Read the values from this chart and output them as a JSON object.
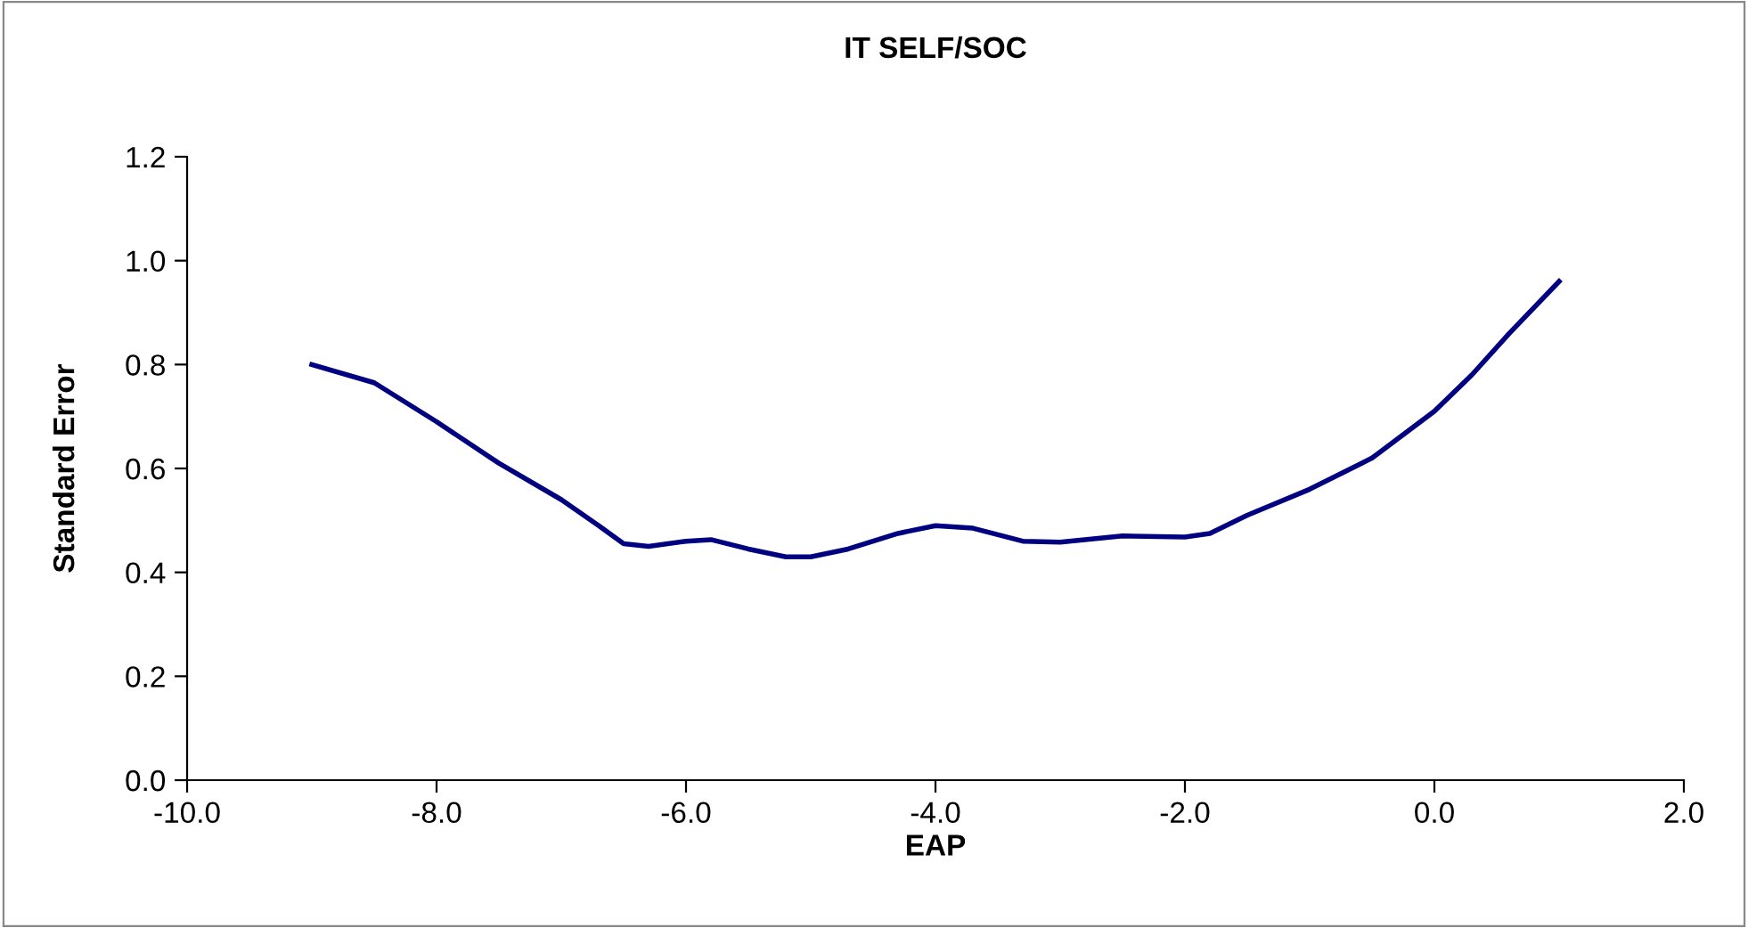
{
  "chart_data": {
    "type": "line",
    "title": "IT SELF/SOC",
    "xlabel": "EAP",
    "ylabel": "Standard Error",
    "x": [
      -9,
      -8.5,
      -8,
      -7.5,
      -7,
      -6.7,
      -6.5,
      -6.3,
      -6,
      -5.8,
      -5.5,
      -5.2,
      -5,
      -4.7,
      -4.3,
      -4,
      -3.7,
      -3.3,
      -3,
      -2.5,
      -2,
      -1.8,
      -1.5,
      -1,
      -0.5,
      0,
      0.3,
      0.6,
      1
    ],
    "series": [
      {
        "color": "#000080",
        "values": [
          0.8,
          0.765,
          0.69,
          0.61,
          0.54,
          0.49,
          0.455,
          0.45,
          0.46,
          0.463,
          0.445,
          0.43,
          0.43,
          0.445,
          0.475,
          0.49,
          0.485,
          0.46,
          0.458,
          0.47,
          0.468,
          0.475,
          0.51,
          0.56,
          0.62,
          0.71,
          0.78,
          0.86,
          0.96
        ]
      }
    ],
    "xlim": [
      -10,
      2
    ],
    "xticks": [
      {
        "value": -10,
        "label": "-10.0"
      },
      {
        "value": -8,
        "label": "-8.0"
      },
      {
        "value": -6,
        "label": "-6.0"
      },
      {
        "value": -4,
        "label": "-4.0"
      },
      {
        "value": -2,
        "label": "-2.0"
      },
      {
        "value": 0,
        "label": "0.0"
      },
      {
        "value": 2,
        "label": "2.0"
      }
    ],
    "ylim": [
      0,
      1.2
    ],
    "yticks": [
      {
        "value": 0,
        "label": "0.0"
      },
      {
        "value": 0.2,
        "label": "0.2"
      },
      {
        "value": 0.4,
        "label": "0.4"
      },
      {
        "value": 0.6,
        "label": "0.6"
      },
      {
        "value": 0.8,
        "label": "0.8"
      },
      {
        "value": 1.0,
        "label": "1.0"
      },
      {
        "value": 1.2,
        "label": "1.2"
      }
    ],
    "grid": false,
    "legend": false,
    "marker": "none",
    "line_style": "solid"
  }
}
